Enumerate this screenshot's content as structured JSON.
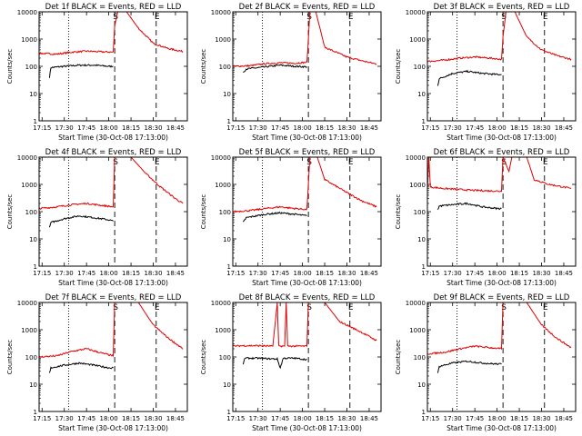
{
  "colors": {
    "events": "#000000",
    "lld": "#e00000",
    "axes": "#000000",
    "background": "#ffffff"
  },
  "y_label": "Counts/sec",
  "x_label": "Start Time (30-Oct-08 17:13:00)",
  "x_tick_labels": [
    "17:15",
    "17:30",
    "17:45",
    "18:00",
    "18:15",
    "18:30",
    "18:45"
  ],
  "y_tick_labels": [
    "1",
    "10",
    "100",
    "1000",
    "10000"
  ],
  "chart_data": [
    {
      "type": "line",
      "title": "Det 1f BLACK = Events, RED = LLD",
      "xlim": [
        "17:13",
        "18:53"
      ],
      "ylim": [
        1,
        10000
      ],
      "yscale": "log",
      "grid": false,
      "markers": [
        {
          "x": "17:33",
          "style": "dotted"
        },
        {
          "x": "18:04",
          "style": "dashed",
          "label": "S"
        },
        {
          "x": "18:32",
          "style": "dashed",
          "label": "E"
        }
      ],
      "series": [
        {
          "name": "Events",
          "points": [
            [
              "17:20",
              40
            ],
            [
              "17:21",
              90
            ],
            [
              "17:30",
              100
            ],
            [
              "17:40",
              110
            ],
            [
              "17:50",
              110
            ],
            [
              "18:00",
              100
            ],
            [
              "18:03",
              100
            ]
          ]
        },
        {
          "name": "LLD",
          "points": [
            [
              "17:13",
              300
            ],
            [
              "17:25",
              280
            ],
            [
              "17:35",
              330
            ],
            [
              "17:45",
              360
            ],
            [
              "17:55",
              340
            ],
            [
              "18:03",
              330
            ],
            [
              "18:04",
              3000
            ],
            [
              "18:06",
              10000
            ],
            [
              "18:12",
              10000
            ],
            [
              "18:20",
              2500
            ],
            [
              "18:30",
              700
            ],
            [
              "18:40",
              450
            ],
            [
              "18:50",
              350
            ]
          ]
        }
      ]
    },
    {
      "type": "line",
      "title": "Det 2f BLACK = Events, RED = LLD",
      "xlim": [
        "17:13",
        "18:53"
      ],
      "ylim": [
        1,
        10000
      ],
      "yscale": "log",
      "grid": false,
      "markers": [
        {
          "x": "17:33",
          "style": "dotted"
        },
        {
          "x": "18:04",
          "style": "dashed",
          "label": "S"
        },
        {
          "x": "18:32",
          "style": "dashed",
          "label": "E"
        }
      ],
      "series": [
        {
          "name": "Events",
          "points": [
            [
              "17:20",
              60
            ],
            [
              "17:22",
              80
            ],
            [
              "17:35",
              95
            ],
            [
              "17:45",
              110
            ],
            [
              "17:55",
              100
            ],
            [
              "18:03",
              95
            ]
          ]
        },
        {
          "name": "LLD",
          "points": [
            [
              "17:13",
              100
            ],
            [
              "17:25",
              105
            ],
            [
              "17:35",
              125
            ],
            [
              "17:45",
              135
            ],
            [
              "17:55",
              130
            ],
            [
              "18:03",
              140
            ],
            [
              "18:04",
              1000
            ],
            [
              "18:05",
              10000
            ],
            [
              "18:09",
              10000
            ],
            [
              "18:15",
              500
            ],
            [
              "18:30",
              220
            ],
            [
              "18:40",
              160
            ],
            [
              "18:50",
              120
            ]
          ]
        }
      ]
    },
    {
      "type": "line",
      "title": "Det 3f BLACK = Events, RED = LLD",
      "xlim": [
        "17:13",
        "18:53"
      ],
      "ylim": [
        1,
        10000
      ],
      "yscale": "log",
      "grid": false,
      "markers": [
        {
          "x": "17:33",
          "style": "dotted"
        },
        {
          "x": "18:04",
          "style": "dashed",
          "label": "S"
        },
        {
          "x": "18:32",
          "style": "dashed",
          "label": "E"
        }
      ],
      "series": [
        {
          "name": "Events",
          "points": [
            [
              "17:20",
              20
            ],
            [
              "17:21",
              35
            ],
            [
              "17:30",
              55
            ],
            [
              "17:40",
              65
            ],
            [
              "17:50",
              55
            ],
            [
              "18:00",
              50
            ],
            [
              "18:03",
              50
            ]
          ]
        },
        {
          "name": "LLD",
          "points": [
            [
              "17:13",
              150
            ],
            [
              "17:25",
              170
            ],
            [
              "17:35",
              200
            ],
            [
              "17:45",
              220
            ],
            [
              "17:55",
              200
            ],
            [
              "18:03",
              180
            ],
            [
              "18:04",
              1200
            ],
            [
              "18:06",
              10000
            ],
            [
              "18:12",
              10000
            ],
            [
              "18:20",
              1200
            ],
            [
              "18:30",
              400
            ],
            [
              "18:40",
              250
            ],
            [
              "18:50",
              180
            ]
          ]
        }
      ]
    },
    {
      "type": "line",
      "title": "Det 4f BLACK = Events, RED = LLD",
      "xlim": [
        "17:13",
        "18:53"
      ],
      "ylim": [
        1,
        10000
      ],
      "yscale": "log",
      "grid": false,
      "markers": [
        {
          "x": "17:33",
          "style": "dotted"
        },
        {
          "x": "18:04",
          "style": "dashed",
          "label": "S"
        },
        {
          "x": "18:32",
          "style": "dashed",
          "label": "E"
        }
      ],
      "series": [
        {
          "name": "Events",
          "points": [
            [
              "17:20",
              25
            ],
            [
              "17:21",
              40
            ],
            [
              "17:30",
              55
            ],
            [
              "17:40",
              70
            ],
            [
              "17:50",
              60
            ],
            [
              "18:00",
              50
            ],
            [
              "18:03",
              45
            ]
          ]
        },
        {
          "name": "LLD",
          "points": [
            [
              "17:13",
              130
            ],
            [
              "17:25",
              150
            ],
            [
              "17:35",
              180
            ],
            [
              "17:45",
              200
            ],
            [
              "17:55",
              170
            ],
            [
              "18:03",
              150
            ],
            [
              "18:04",
              10000
            ],
            [
              "18:15",
              10000
            ],
            [
              "18:25",
              2500
            ],
            [
              "18:35",
              800
            ],
            [
              "18:45",
              300
            ],
            [
              "18:50",
              200
            ]
          ]
        }
      ]
    },
    {
      "type": "line",
      "title": "Det 5f BLACK = Events, RED = LLD",
      "xlim": [
        "17:13",
        "18:53"
      ],
      "ylim": [
        1,
        10000
      ],
      "yscale": "log",
      "grid": false,
      "markers": [
        {
          "x": "17:33",
          "style": "dotted"
        },
        {
          "x": "18:04",
          "style": "dashed",
          "label": "S"
        },
        {
          "x": "18:32",
          "style": "dashed",
          "label": "E"
        }
      ],
      "series": [
        {
          "name": "Events",
          "points": [
            [
              "17:20",
              40
            ],
            [
              "17:22",
              60
            ],
            [
              "17:35",
              80
            ],
            [
              "17:45",
              90
            ],
            [
              "17:55",
              80
            ],
            [
              "18:03",
              70
            ]
          ]
        },
        {
          "name": "LLD",
          "points": [
            [
              "17:13",
              100
            ],
            [
              "17:25",
              110
            ],
            [
              "17:35",
              130
            ],
            [
              "17:45",
              150
            ],
            [
              "17:55",
              130
            ],
            [
              "18:03",
              120
            ],
            [
              "18:04",
              1000
            ],
            [
              "18:05",
              10000
            ],
            [
              "18:10",
              10000
            ],
            [
              "18:15",
              1500
            ],
            [
              "18:30",
              500
            ],
            [
              "18:40",
              250
            ],
            [
              "18:50",
              150
            ]
          ]
        }
      ]
    },
    {
      "type": "line",
      "title": "Det 6f BLACK = Events, RED = LLD",
      "xlim": [
        "17:13",
        "18:53"
      ],
      "ylim": [
        1,
        10000
      ],
      "yscale": "log",
      "grid": false,
      "markers": [
        {
          "x": "17:33",
          "style": "dotted"
        },
        {
          "x": "18:04",
          "style": "dashed",
          "label": "S"
        },
        {
          "x": "18:32",
          "style": "dashed",
          "label": "E"
        }
      ],
      "series": [
        {
          "name": "Events",
          "points": [
            [
              "17:20",
              120
            ],
            [
              "17:21",
              160
            ],
            [
              "17:30",
              180
            ],
            [
              "17:40",
              200
            ],
            [
              "17:50",
              150
            ],
            [
              "18:00",
              130
            ],
            [
              "18:03",
              130
            ]
          ]
        },
        {
          "name": "LLD",
          "points": [
            [
              "17:13",
              600
            ],
            [
              "17:14",
              10000
            ],
            [
              "17:15",
              800
            ],
            [
              "17:25",
              700
            ],
            [
              "17:35",
              650
            ],
            [
              "17:45",
              600
            ],
            [
              "17:55",
              580
            ],
            [
              "18:03",
              560
            ],
            [
              "18:04",
              10000
            ],
            [
              "18:08",
              3000
            ],
            [
              "18:10",
              10000
            ],
            [
              "18:20",
              10000
            ],
            [
              "18:25",
              1500
            ],
            [
              "18:35",
              1000
            ],
            [
              "18:45",
              800
            ],
            [
              "18:50",
              700
            ]
          ]
        }
      ]
    },
    {
      "type": "line",
      "title": "Det 7f BLACK = Events, RED = LLD",
      "xlim": [
        "17:13",
        "18:53"
      ],
      "ylim": [
        1,
        10000
      ],
      "yscale": "log",
      "grid": false,
      "markers": [
        {
          "x": "17:33",
          "style": "dotted"
        },
        {
          "x": "18:04",
          "style": "dashed",
          "label": "S"
        },
        {
          "x": "18:32",
          "style": "dashed",
          "label": "E"
        }
      ],
      "series": [
        {
          "name": "Events",
          "points": [
            [
              "17:20",
              25
            ],
            [
              "17:21",
              40
            ],
            [
              "17:30",
              50
            ],
            [
              "17:40",
              60
            ],
            [
              "17:50",
              50
            ],
            [
              "18:00",
              40
            ],
            [
              "18:03",
              40
            ]
          ]
        },
        {
          "name": "LLD",
          "points": [
            [
              "17:13",
              100
            ],
            [
              "17:25",
              110
            ],
            [
              "17:35",
              160
            ],
            [
              "17:45",
              200
            ],
            [
              "17:55",
              140
            ],
            [
              "18:03",
              110
            ],
            [
              "18:04",
              10000
            ],
            [
              "18:20",
              10000
            ],
            [
              "18:30",
              1500
            ],
            [
              "18:40",
              500
            ],
            [
              "18:50",
              200
            ]
          ]
        }
      ]
    },
    {
      "type": "line",
      "title": "Det 8f BLACK = Events, RED = LLD",
      "xlim": [
        "17:13",
        "18:53"
      ],
      "ylim": [
        1,
        10000
      ],
      "yscale": "log",
      "grid": false,
      "markers": [
        {
          "x": "17:33",
          "style": "dotted"
        },
        {
          "x": "18:04",
          "style": "dashed",
          "label": "S"
        },
        {
          "x": "18:32",
          "style": "dashed",
          "label": "E"
        }
      ],
      "series": [
        {
          "name": "Events",
          "points": [
            [
              "17:20",
              50
            ],
            [
              "17:21",
              90
            ],
            [
              "17:30",
              90
            ],
            [
              "17:40",
              85
            ],
            [
              "17:43",
              85
            ],
            [
              "17:45",
              40
            ],
            [
              "17:47",
              90
            ],
            [
              "17:55",
              90
            ],
            [
              "18:03",
              80
            ]
          ]
        },
        {
          "name": "LLD",
          "points": [
            [
              "17:13",
              250
            ],
            [
              "17:20",
              260
            ],
            [
              "17:30",
              260
            ],
            [
              "17:40",
              250
            ],
            [
              "17:43",
              10000
            ],
            [
              "17:44",
              250
            ],
            [
              "17:48",
              250
            ],
            [
              "17:49",
              10000
            ],
            [
              "17:50",
              250
            ],
            [
              "18:00",
              250
            ],
            [
              "18:03",
              250
            ],
            [
              "18:04",
              10000
            ],
            [
              "18:15",
              10000
            ],
            [
              "18:25",
              2000
            ],
            [
              "18:40",
              800
            ],
            [
              "18:50",
              400
            ]
          ]
        }
      ]
    },
    {
      "type": "line",
      "title": "Det 9f BLACK = Events, RED = LLD",
      "xlim": [
        "17:13",
        "18:53"
      ],
      "ylim": [
        1,
        10000
      ],
      "yscale": "log",
      "grid": false,
      "markers": [
        {
          "x": "17:33",
          "style": "dotted"
        },
        {
          "x": "18:04",
          "style": "dashed",
          "label": "S"
        },
        {
          "x": "18:32",
          "style": "dashed",
          "label": "E"
        }
      ],
      "series": [
        {
          "name": "Events",
          "points": [
            [
              "17:20",
              25
            ],
            [
              "17:21",
              45
            ],
            [
              "17:30",
              60
            ],
            [
              "17:40",
              70
            ],
            [
              "17:50",
              60
            ],
            [
              "18:00",
              55
            ],
            [
              "18:03",
              55
            ]
          ]
        },
        {
          "name": "LLD",
          "points": [
            [
              "17:13",
              130
            ],
            [
              "17:25",
              150
            ],
            [
              "17:35",
              200
            ],
            [
              "17:45",
              250
            ],
            [
              "17:55",
              220
            ],
            [
              "18:03",
              200
            ],
            [
              "18:04",
              10000
            ],
            [
              "18:20",
              10000
            ],
            [
              "18:30",
              1500
            ],
            [
              "18:40",
              500
            ],
            [
              "18:50",
              220
            ]
          ]
        }
      ]
    }
  ]
}
